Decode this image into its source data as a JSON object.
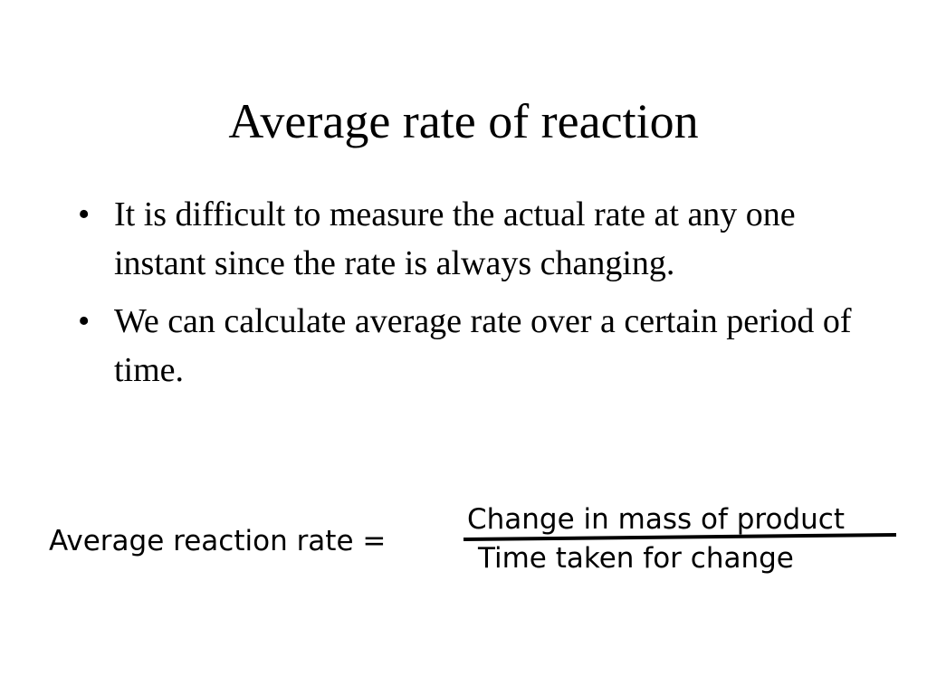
{
  "slide": {
    "title": "Average rate of reaction",
    "bullets": [
      {
        "marker": "•",
        "text": "It is difficult to measure the actual rate at any one instant since the rate is always changing."
      },
      {
        "marker": "•",
        "text": "We can calculate average rate over a certain period of time."
      }
    ],
    "formula": {
      "lhs": "Average reaction rate =",
      "numerator": "Change in mass of product",
      "denominator": "Time taken for change"
    }
  }
}
